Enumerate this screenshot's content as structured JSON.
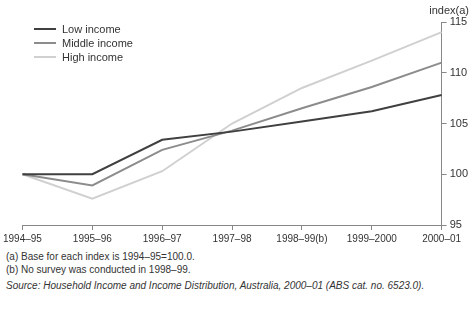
{
  "chart_data": {
    "type": "line",
    "y_label": "index(a)",
    "categories": [
      "1994–95",
      "1995–96",
      "1996–97",
      "1997–98",
      "1998–99(b)",
      "1999–2000",
      "2000–01"
    ],
    "series": [
      {
        "name": "Low income",
        "color": "#404040",
        "values": [
          100,
          100,
          103.4,
          104.2,
          105.2,
          106.2,
          107.8
        ]
      },
      {
        "name": "Middle income",
        "color": "#8c8c8c",
        "values": [
          100,
          98.9,
          102.4,
          104.3,
          106.5,
          108.6,
          111
        ]
      },
      {
        "name": "High income",
        "color": "#d0d0d0",
        "values": [
          100,
          97.6,
          100.3,
          105,
          108.5,
          111.2,
          114
        ]
      }
    ],
    "ylim": [
      95,
      115
    ],
    "yticks": [
      95,
      100,
      105,
      110,
      115
    ],
    "grid": false,
    "legend": "upper left",
    "notes": [
      "(a) Base for each index is 1994–95=100.0.",
      "(b) No survey was conducted in 1998–99."
    ],
    "source": "Source: Household Income and Income Distribution, Australia, 2000–01 (ABS cat. no. 6523.0)."
  }
}
